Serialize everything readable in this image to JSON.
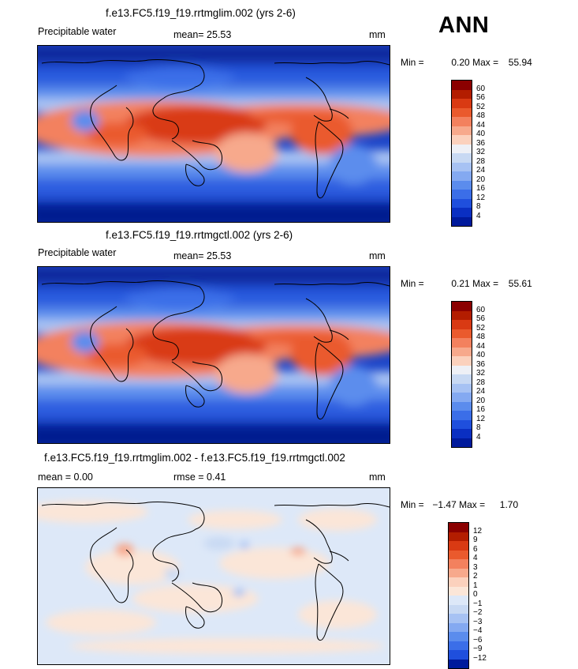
{
  "season": "ANN",
  "panels": [
    {
      "title": "f.e13.FC5.f19_f19.rrtmglim.002 (yrs 2-6)",
      "field": "Precipitable water",
      "stat_left": "",
      "mean": "mean=   25.53",
      "units": "mm",
      "min_label": "Min =",
      "min": "0.20",
      "max_label": "Max =",
      "max": "55.94",
      "levels": [
        "60",
        "56",
        "52",
        "48",
        "44",
        "40",
        "36",
        "32",
        "28",
        "24",
        "20",
        "16",
        "12",
        "8",
        "4"
      ],
      "colors": [
        "#8b0000",
        "#b31d00",
        "#d93a13",
        "#ea5a2d",
        "#f3815e",
        "#f7a98c",
        "#fbd1bd",
        "#eef0f6",
        "#c8d9f3",
        "#a7c2f3",
        "#84a9f1",
        "#5b8ced",
        "#3b6ee8",
        "#1f4fdd",
        "#0a2fc2",
        "#001a9c"
      ],
      "chart_type": "heatmap"
    },
    {
      "title": "f.e13.FC5.f19_f19.rrtmgctl.002 (yrs 2-6)",
      "field": "Precipitable water",
      "stat_left": "",
      "mean": "mean=   25.53",
      "units": "mm",
      "min_label": "Min =",
      "min": "0.21",
      "max_label": "Max =",
      "max": "55.61",
      "levels": [
        "60",
        "56",
        "52",
        "48",
        "44",
        "40",
        "36",
        "32",
        "28",
        "24",
        "20",
        "16",
        "12",
        "8",
        "4"
      ],
      "colors": [
        "#8b0000",
        "#b31d00",
        "#d93a13",
        "#ea5a2d",
        "#f3815e",
        "#f7a98c",
        "#fbd1bd",
        "#eef0f6",
        "#c8d9f3",
        "#a7c2f3",
        "#84a9f1",
        "#5b8ced",
        "#3b6ee8",
        "#1f4fdd",
        "#0a2fc2",
        "#001a9c"
      ],
      "chart_type": "heatmap"
    },
    {
      "title": "f.e13.FC5.f19_f19.rrtmglim.002 - f.e13.FC5.f19_f19.rrtmgctl.002",
      "field": "",
      "stat_left": "mean =    0.00",
      "mean": "rmse =    0.41",
      "units": "mm",
      "min_label": "Min =",
      "min": "−1.47",
      "max_label": "Max =",
      "max": "1.70",
      "levels": [
        "12",
        "9",
        "6",
        "4",
        "3",
        "2",
        "1",
        "0",
        "−1",
        "−2",
        "−3",
        "−4",
        "−6",
        "−9",
        "−12"
      ],
      "colors": [
        "#8b0000",
        "#b31d00",
        "#d93a13",
        "#ea5a2d",
        "#f3815e",
        "#f7a98c",
        "#fbd1bd",
        "#fbe6d8",
        "#dde8f8",
        "#c8d9f3",
        "#a7c2f3",
        "#84a9f1",
        "#5b8ced",
        "#3b6ee8",
        "#1f4fdd",
        "#001a9c"
      ],
      "chart_type": "heatmap"
    }
  ],
  "chart_data": [
    {
      "type": "heatmap",
      "title": "f.e13.FC5.f19_f19.rrtmglim.002 (yrs 2-6)",
      "variable": "Precipitable water",
      "units": "mm",
      "mean": 25.53,
      "min": 0.2,
      "max": 55.94,
      "contour_levels": [
        4,
        8,
        12,
        16,
        20,
        24,
        28,
        32,
        36,
        40,
        44,
        48,
        52,
        56,
        60
      ]
    },
    {
      "type": "heatmap",
      "title": "f.e13.FC5.f19_f19.rrtmgctl.002 (yrs 2-6)",
      "variable": "Precipitable water",
      "units": "mm",
      "mean": 25.53,
      "min": 0.21,
      "max": 55.61,
      "contour_levels": [
        4,
        8,
        12,
        16,
        20,
        24,
        28,
        32,
        36,
        40,
        44,
        48,
        52,
        56,
        60
      ]
    },
    {
      "type": "heatmap",
      "title": "f.e13.FC5.f19_f19.rrtmglim.002 - f.e13.FC5.f19_f19.rrtmgctl.002",
      "units": "mm",
      "mean": 0.0,
      "rmse": 0.41,
      "min": -1.47,
      "max": 1.7,
      "contour_levels": [
        -12,
        -9,
        -6,
        -4,
        -3,
        -2,
        -1,
        0,
        1,
        2,
        3,
        4,
        6,
        9,
        12
      ]
    }
  ]
}
